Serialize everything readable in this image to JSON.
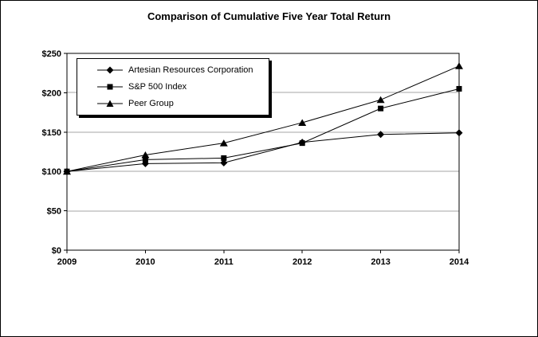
{
  "title": "Comparison of Cumulative Five Year Total Return",
  "legend": {
    "items": [
      {
        "label": "Artesian Resources Corporation",
        "marker": "diamond"
      },
      {
        "label": "S&P 500 Index",
        "marker": "square"
      },
      {
        "label": "Peer Group",
        "marker": "triangle"
      }
    ]
  },
  "chart_data": {
    "type": "line",
    "title": "Comparison of Cumulative Five Year Total Return",
    "x": [
      2009,
      2010,
      2011,
      2012,
      2013,
      2014
    ],
    "x_tick_labels": [
      "2009",
      "2010",
      "2011",
      "2012",
      "2013",
      "2014"
    ],
    "y_tick_labels": [
      "$0",
      "$50",
      "$100",
      "$150",
      "$200",
      "$250"
    ],
    "ylim": [
      0,
      250
    ],
    "y_tick_step": 50,
    "grid": "horizontal",
    "legend_position": "inside-top-left",
    "series": [
      {
        "name": "Artesian Resources Corporation",
        "marker": "diamond",
        "values": [
          100,
          110,
          111,
          137,
          147,
          149
        ]
      },
      {
        "name": "S&P 500 Index",
        "marker": "square",
        "values": [
          100,
          115,
          117,
          136,
          180,
          205
        ]
      },
      {
        "name": "Peer Group",
        "marker": "triangle",
        "values": [
          100,
          121,
          136,
          162,
          191,
          234
        ]
      }
    ],
    "colors": {
      "line": "#000000",
      "marker": "#000000",
      "grid": "#a6a6a6",
      "axis": "#000000",
      "text": "#000000"
    }
  }
}
